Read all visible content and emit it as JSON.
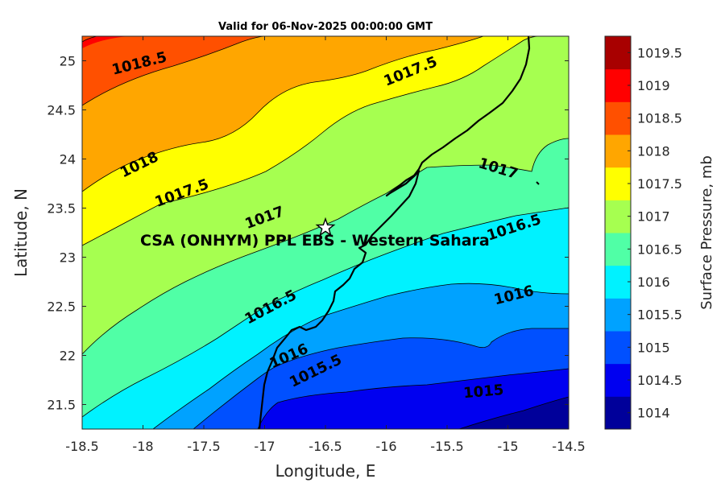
{
  "map": {
    "title": "Valid for 06-Nov-2025 00:00:00 GMT",
    "xlabel": "Longitude, E",
    "ylabel": "Latitude, N",
    "x_ticks": [
      "-18.5",
      "-18",
      "-17.5",
      "-17",
      "-16.5",
      "-16",
      "-15.5",
      "-15",
      "-14.5"
    ],
    "y_ticks": [
      "25",
      "24.5",
      "24",
      "23.5",
      "23",
      "22.5",
      "22",
      "21.5"
    ],
    "xlim": [
      -18.5,
      -14.5
    ],
    "ylim": [
      21.25,
      25.25
    ],
    "station": {
      "name": "CSA (ONHYM) PPL EBS  - Western Sahara",
      "lon": -16.5,
      "lat": 23.3
    }
  },
  "colorbar": {
    "label": "Surface Pressure, mb",
    "levels": [
      "1014",
      "1014.5",
      "1015",
      "1015.5",
      "1016",
      "1016.5",
      "1017",
      "1017.5",
      "1018",
      "1018.5",
      "1019",
      "1019.5"
    ],
    "colors": [
      "#00009a",
      "#0000f0",
      "#0050ff",
      "#00a2ff",
      "#00f2ff",
      "#50ffa6",
      "#a6ff50",
      "#ffff00",
      "#ffa600",
      "#ff5000",
      "#ff0000",
      "#a80000"
    ]
  },
  "contour_labels": [
    {
      "text": "1018.5",
      "lon": -18.03,
      "lat": 24.97,
      "angle": -14
    },
    {
      "text": "1017.5",
      "lon": -15.8,
      "lat": 24.89,
      "angle": -22
    },
    {
      "text": "1018",
      "lon": -18.03,
      "lat": 23.94,
      "angle": -26
    },
    {
      "text": "1017.5",
      "lon": -17.68,
      "lat": 23.65,
      "angle": -20
    },
    {
      "text": "1017",
      "lon": -17.0,
      "lat": 23.4,
      "angle": -20
    },
    {
      "text": "1017",
      "lon": -15.08,
      "lat": 23.9,
      "angle": 17
    },
    {
      "text": "1016.5",
      "lon": -14.95,
      "lat": 23.3,
      "angle": -18
    },
    {
      "text": "1016.5",
      "lon": -16.95,
      "lat": 22.49,
      "angle": -28
    },
    {
      "text": "1016",
      "lon": -14.95,
      "lat": 22.61,
      "angle": -14
    },
    {
      "text": "1016",
      "lon": -16.8,
      "lat": 21.99,
      "angle": -24
    },
    {
      "text": "1015.5",
      "lon": -16.58,
      "lat": 21.84,
      "angle": -26
    },
    {
      "text": "1015",
      "lon": -15.2,
      "lat": 21.63,
      "angle": -5
    }
  ]
}
